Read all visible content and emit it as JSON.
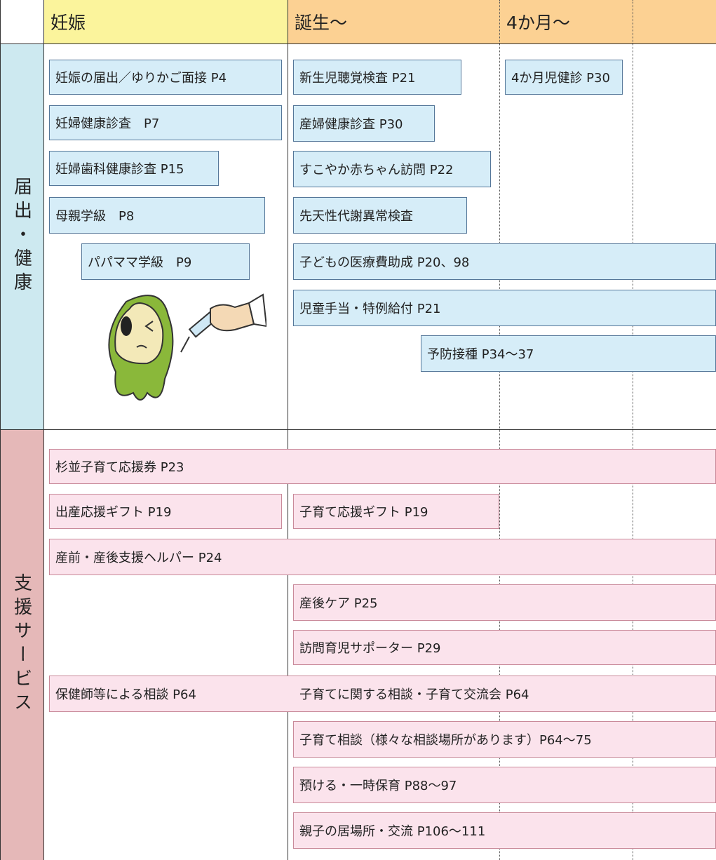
{
  "header": {
    "columns": [
      "妊娠",
      "誕生〜",
      "4か月〜"
    ]
  },
  "sections": [
    {
      "label": "届出・健康",
      "items": [
        {
          "text": "妊娠の届出／ゆりかご面接 P4"
        },
        {
          "text": "妊婦健康診査　P7"
        },
        {
          "text": "妊婦歯科健康診査 P15"
        },
        {
          "text": "母親学級　P8"
        },
        {
          "text": "パパママ学級　P9"
        },
        {
          "text": "新生児聴覚検査 P21"
        },
        {
          "text": "4か月児健診 P30"
        },
        {
          "text": "産婦健康診査 P30"
        },
        {
          "text": "すこやか赤ちゃん訪問 P22"
        },
        {
          "text": "先天性代謝異常検査"
        },
        {
          "text": "子どもの医療費助成 P20、98"
        },
        {
          "text": "児童手当・特例給付 P21"
        },
        {
          "text": "予防接種 P34〜37"
        }
      ]
    },
    {
      "label": "支援サービス",
      "items": [
        {
          "text": "杉並子育て応援券 P23"
        },
        {
          "text": "出産応援ギフト P19"
        },
        {
          "text": "子育て応援ギフト P19"
        },
        {
          "text": "産前・産後支援ヘルパー P24"
        },
        {
          "text": "産後ケア P25"
        },
        {
          "text": "訪問育児サポーター P29"
        },
        {
          "text": "保健師等による相談 P64",
          "text2": "子育てに関する相談・子育て交流会 P64"
        },
        {
          "text": "子育て相談（様々な相談場所があります）P64〜75"
        },
        {
          "text": "預ける・一時保育 P88〜97"
        },
        {
          "text": "親子の居場所・交流 P106〜111"
        }
      ]
    }
  ]
}
